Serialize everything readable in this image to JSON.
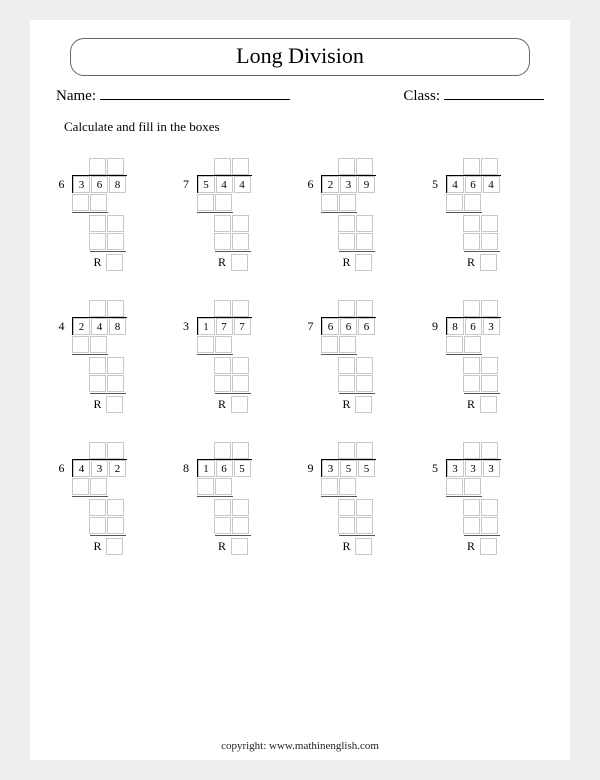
{
  "title": "Long Division",
  "name_label": "Name:",
  "class_label": "Class:",
  "instruction": "Calculate and fill in the boxes",
  "remainder_label": "R",
  "footer": "copyright:    www.mathinenglish.com",
  "problems": [
    {
      "divisor": "6",
      "dividend": [
        "3",
        "6",
        "8"
      ]
    },
    {
      "divisor": "7",
      "dividend": [
        "5",
        "4",
        "4"
      ]
    },
    {
      "divisor": "6",
      "dividend": [
        "2",
        "3",
        "9"
      ]
    },
    {
      "divisor": "5",
      "dividend": [
        "4",
        "6",
        "4"
      ]
    },
    {
      "divisor": "4",
      "dividend": [
        "2",
        "4",
        "8"
      ]
    },
    {
      "divisor": "3",
      "dividend": [
        "1",
        "7",
        "7"
      ]
    },
    {
      "divisor": "7",
      "dividend": [
        "6",
        "6",
        "6"
      ]
    },
    {
      "divisor": "9",
      "dividend": [
        "8",
        "6",
        "3"
      ]
    },
    {
      "divisor": "6",
      "dividend": [
        "4",
        "3",
        "2"
      ]
    },
    {
      "divisor": "8",
      "dividend": [
        "1",
        "6",
        "5"
      ]
    },
    {
      "divisor": "9",
      "dividend": [
        "3",
        "5",
        "5"
      ]
    },
    {
      "divisor": "5",
      "dividend": [
        "3",
        "3",
        "3"
      ]
    }
  ]
}
